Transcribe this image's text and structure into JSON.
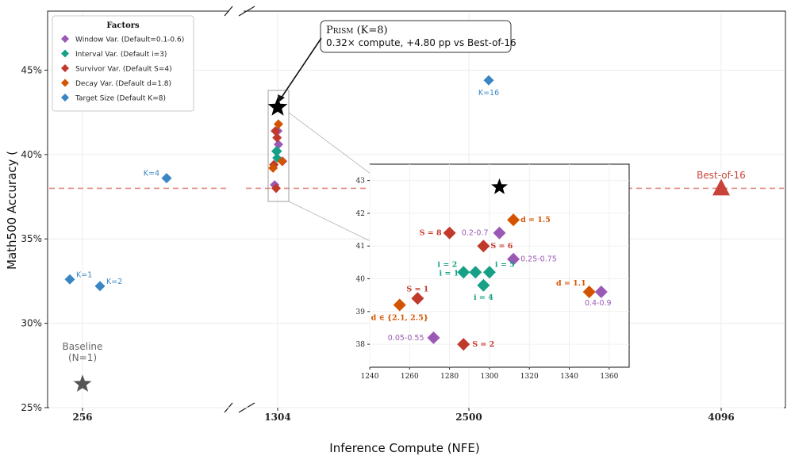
{
  "chart_data": {
    "type": "scatter",
    "xlabel": "Inference Compute (NFE)",
    "ylabel": "Math500 Accuracy (",
    "x_ticks": [
      "256",
      "1304",
      "2500",
      "4096"
    ],
    "y_ticks": [
      "25%",
      "30%",
      "35%",
      "40%",
      "45%"
    ],
    "ylim": [
      25,
      48.5
    ],
    "best_of_16": {
      "accuracy": 38.0,
      "x": 4096,
      "label": "Best-of-16",
      "color": "#c8443a"
    },
    "baseline": {
      "accuracy": 26.4,
      "x": 256,
      "label_line1": "Baseline",
      "label_line2": "(N=1)",
      "color": "#555555"
    },
    "prism": {
      "accuracy": 42.8,
      "x": 1304
    },
    "callout": {
      "title": "Prism",
      "title_suffix": " (K=8)",
      "text": "0.32× compute, +4.80 pp vs Best-of-16"
    },
    "legend": {
      "title": "Factors",
      "placement": "top-left",
      "entries": [
        {
          "label": "Window Var. (Default=0.1-0.6)",
          "color": "#9b59b6"
        },
        {
          "label": "Interval Var. (Default i=3)",
          "color": "#16a085"
        },
        {
          "label": "Survivor Var. (Default S=4)",
          "color": "#c0392b"
        },
        {
          "label": "Decay Var. (Default d=1.8)",
          "color": "#d35400"
        },
        {
          "label": "Target Size (Default K=8)",
          "color": "#3a86c4"
        }
      ]
    },
    "series": [
      {
        "name": "Target Size (Default K=8)",
        "color": "#3a86c4",
        "points": [
          {
            "x": 256,
            "y": 32.6,
            "label": "K=1"
          },
          {
            "x": 256,
            "y": 32.2,
            "label": "K=2"
          },
          {
            "x": 256,
            "y": 38.6,
            "label": "K=4"
          },
          {
            "x": 2500,
            "y": 44.4,
            "label": "K=16"
          }
        ]
      }
    ],
    "inset": {
      "xlim": [
        1240,
        1370
      ],
      "ylim": [
        37.3,
        43.5
      ],
      "x_ticks": [
        "1240",
        "1260",
        "1280",
        "1300",
        "1320",
        "1340",
        "1360"
      ],
      "y_ticks": [
        "38",
        "39",
        "40",
        "41",
        "42",
        "43"
      ],
      "prism": {
        "x": 1305,
        "y": 42.8
      },
      "series": [
        {
          "name": "Window Var. (Default=0.1-0.6)",
          "color": "#9b59b6",
          "points": [
            {
              "x": 1305,
              "y": 41.4,
              "label": "0.2-0.7"
            },
            {
              "x": 1312,
              "y": 40.6,
              "label": "0.25-0.75"
            },
            {
              "x": 1356,
              "y": 39.6,
              "label": "0.4-0.9"
            },
            {
              "x": 1272,
              "y": 38.2,
              "label": "0.05-0.55"
            }
          ]
        },
        {
          "name": "Interval Var. (Default i=3)",
          "color": "#16a085",
          "points": [
            {
              "x": 1287,
              "y": 40.2,
              "label": "i = 2"
            },
            {
              "x": 1293,
              "y": 40.2,
              "label": "i = 1"
            },
            {
              "x": 1300,
              "y": 40.2,
              "label": "i = 5"
            },
            {
              "x": 1297,
              "y": 39.8,
              "label": "i = 4"
            }
          ]
        },
        {
          "name": "Survivor Var. (Default S=4)",
          "color": "#c0392b",
          "points": [
            {
              "x": 1280,
              "y": 41.4,
              "label": "S = 8"
            },
            {
              "x": 1297,
              "y": 41.0,
              "label": "S = 6"
            },
            {
              "x": 1264,
              "y": 39.4,
              "label": "S = 1"
            },
            {
              "x": 1287,
              "y": 38.0,
              "label": "S = 2"
            }
          ]
        },
        {
          "name": "Decay Var. (Default d=1.8)",
          "color": "#d35400",
          "points": [
            {
              "x": 1312,
              "y": 41.8,
              "label": "d = 1.5"
            },
            {
              "x": 1350,
              "y": 39.6,
              "label": "d = 1.1"
            },
            {
              "x": 1255,
              "y": 39.2,
              "label": "d ∈ {2.1, 2.5}"
            }
          ]
        }
      ]
    }
  }
}
